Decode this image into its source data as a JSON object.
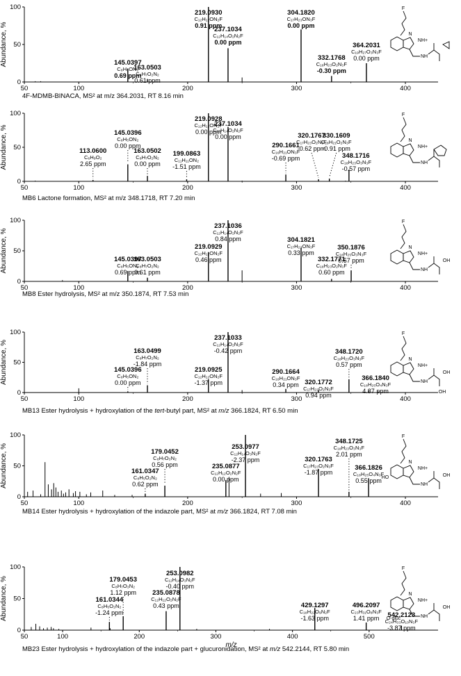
{
  "common": {
    "y_label": "Abundance, %",
    "x_label": "m/z",
    "y_ticks": [
      "0",
      "50",
      "100"
    ],
    "struct_fluoro": "F",
    "struct_nh_plus": "NH+",
    "struct_nh": "NH",
    "struct_n": "N",
    "struct_oh": "OH",
    "struct_ho": "HO",
    "struct_ogluc": "O-gluc"
  },
  "chart_data": [
    {
      "type": "bar",
      "caption": "4F-MDMB-BINACA, MS² at m/z 364.2031, RT 8.16 min",
      "xlim": [
        50,
        430
      ],
      "ylim": [
        0,
        100
      ],
      "x_ticks": [
        50,
        100,
        200,
        300,
        400
      ],
      "labeled_peaks": [
        {
          "mz": 145.0397,
          "y": 18,
          "mz_label": "145.0397",
          "formula": "C₈H₅ON₂",
          "ppm": "0.69 ppm",
          "ppm_bold": true
        },
        {
          "mz": 163.0503,
          "y": 4,
          "mz_label": "163.0503",
          "formula": "C₈H₇O₂N₂",
          "ppm": "0.61 ppm",
          "ppm_bold": false
        },
        {
          "mz": 219.093,
          "y": 100,
          "mz_label": "219.0930",
          "formula": "C₁₂H₁₂ON₂F",
          "ppm": "0.91 ppm",
          "ppm_bold": true
        },
        {
          "mz": 237.1034,
          "y": 45,
          "mz_label": "237.1034",
          "formula": "C₁₂H₁₄O₂N₂F",
          "ppm": "0.00 ppm",
          "ppm_bold": true
        },
        {
          "mz": 304.182,
          "y": 70,
          "mz_label": "304.1820",
          "formula": "C₁₇H₂₃ON₃F",
          "ppm": "0.00 ppm",
          "ppm_bold": true
        },
        {
          "mz": 332.1768,
          "y": 8,
          "mz_label": "332.1768",
          "formula": "C₁₈H₂₃O₂N₃F",
          "ppm": "-0.30 ppm",
          "ppm_bold": true
        },
        {
          "mz": 364.2031,
          "y": 25,
          "mz_label": "364.2031",
          "formula": "C₁₉H₂₇O₃N₃F",
          "ppm": "0.00 ppm",
          "ppm_bold": false
        }
      ],
      "minor_peaks": [
        {
          "mz": 60,
          "y": 1
        },
        {
          "mz": 65,
          "y": 1
        },
        {
          "mz": 250,
          "y": 6
        }
      ],
      "struct": "ester"
    },
    {
      "type": "bar",
      "caption": "MB6 Lactone formation, MS² at m/z 348.1718, RT 7.20 min",
      "xlim": [
        50,
        430
      ],
      "ylim": [
        0,
        100
      ],
      "x_ticks": [
        50,
        100,
        200,
        300,
        400
      ],
      "labeled_peaks": [
        {
          "mz": 113.06,
          "y": 2,
          "mz_label": "113.0600",
          "formula": "C₆H₉O₂",
          "ppm": "2.65 ppm",
          "ppm_bold": false
        },
        {
          "mz": 145.0396,
          "y": 25,
          "mz_label": "145.0396",
          "formula": "C₈H₅ON₂",
          "ppm": "0.00 ppm",
          "ppm_bold": false
        },
        {
          "mz": 163.0502,
          "y": 8,
          "mz_label": "163.0502",
          "formula": "C₈H₇O₂N₂",
          "ppm": "0.00 ppm",
          "ppm_bold": false
        },
        {
          "mz": 199.0863,
          "y": 3,
          "mz_label": "199.0863",
          "formula": "C₁₁H₁₁ON₂",
          "ppm": "-1.51 ppm",
          "ppm_bold": false
        },
        {
          "mz": 219.0928,
          "y": 100,
          "mz_label": "219.0928",
          "formula": "C₁₂H₁₂ON₂F",
          "ppm": "0.00 ppm",
          "ppm_bold": false
        },
        {
          "mz": 237.1034,
          "y": 80,
          "mz_label": "237.1034",
          "formula": "C₁₂H₁₄O₂N₂F",
          "ppm": "0.00 ppm",
          "ppm_bold": false
        },
        {
          "mz": 290.1661,
          "y": 10,
          "mz_label": "290.1661",
          "formula": "C₁₆H₂₁ON₃F",
          "ppm": "-0.69 ppm",
          "ppm_bold": false
        },
        {
          "mz": 320.1767,
          "y": 3,
          "mz_label": "320.1767",
          "formula": "C₁₇H₂₃O₂N₃F",
          "ppm": "-0.62 ppm",
          "ppm_bold": false
        },
        {
          "mz": 330.1609,
          "y": 4,
          "mz_label": "330.1609",
          "formula": "C₁₈H₂₁O₂N₃F",
          "ppm": "-0.91 ppm",
          "ppm_bold": false
        },
        {
          "mz": 348.1716,
          "y": 17,
          "mz_label": "348.1716",
          "formula": "C₁₈H₂₃O₃N₃F",
          "ppm": "-0.57 ppm",
          "ppm_bold": false
        }
      ],
      "minor_peaks": [
        {
          "mz": 60,
          "y": 1
        },
        {
          "mz": 250,
          "y": 1
        },
        {
          "mz": 345,
          "y": 1
        }
      ],
      "struct": "lactone"
    },
    {
      "type": "bar",
      "caption": "MB8 Ester hydrolysis, MS² at m/z 350.1874, RT 7.53 min",
      "xlim": [
        50,
        430
      ],
      "ylim": [
        0,
        100
      ],
      "x_ticks": [
        50,
        100,
        200,
        300,
        400
      ],
      "labeled_peaks": [
        {
          "mz": 145.0397,
          "y": 17,
          "mz_label": "145.0397",
          "formula": "C₈H₅ON₂",
          "ppm": "0.69 ppm",
          "ppm_bold": false
        },
        {
          "mz": 163.0503,
          "y": 6,
          "mz_label": "163.0503",
          "formula": "C₈H₇O₂N₂",
          "ppm": "0.61 ppm",
          "ppm_bold": false
        },
        {
          "mz": 219.0929,
          "y": 48,
          "mz_label": "219.0929",
          "formula": "C₁₂H₁₂ON₂F",
          "ppm": "0.46 ppm",
          "ppm_bold": false
        },
        {
          "mz": 237.1036,
          "y": 100,
          "mz_label": "237.1036",
          "formula": "C₁₂H₁₄O₂N₂F",
          "ppm": "0.84 ppm",
          "ppm_bold": false
        },
        {
          "mz": 304.1821,
          "y": 55,
          "mz_label": "304.1821",
          "formula": "C₁₇H₂₃ON₃F",
          "ppm": "0.33 ppm",
          "ppm_bold": false
        },
        {
          "mz": 332.1771,
          "y": 4,
          "mz_label": "332.1771",
          "formula": "C₁₈H₂₃O₂N₃F",
          "ppm": "0.60 ppm",
          "ppm_bold": false
        },
        {
          "mz": 350.1876,
          "y": 18,
          "mz_label": "350.1876",
          "formula": "C₁₈H₂₅O₃N₃F",
          "ppm": "0.57 ppm",
          "ppm_bold": false
        }
      ],
      "minor_peaks": [
        {
          "mz": 85,
          "y": 2
        },
        {
          "mz": 250,
          "y": 18
        }
      ],
      "struct": "acid"
    },
    {
      "type": "bar",
      "caption": "MB13 Ester hydrolysis + hydroxylation of the tert-butyl part, MS² at m/z 366.1824, RT 6.50 min",
      "caption_parts": [
        "MB13 Ester hydrolysis + hydroxylation of the ",
        "tert",
        "-butyl part, MS² at ",
        "m/z",
        " 366.1824, RT 6.50 min"
      ],
      "xlim": [
        50,
        430
      ],
      "ylim": [
        0,
        100
      ],
      "x_ticks": [
        50,
        100,
        200,
        300,
        400
      ],
      "labeled_peaks": [
        {
          "mz": 145.0396,
          "y": 2,
          "mz_label": "145.0396",
          "formula": "C₈H₅ON₂",
          "ppm": "0.00 ppm",
          "ppm_bold": false
        },
        {
          "mz": 163.0499,
          "y": 12,
          "mz_label": "163.0499",
          "formula": "C₈H₇O₂N₂",
          "ppm": "-1.84 ppm",
          "ppm_bold": false
        },
        {
          "mz": 219.0925,
          "y": 22,
          "mz_label": "219.0925",
          "formula": "C₁₂H₁₂ON₂F",
          "ppm": "-1.37 ppm",
          "ppm_bold": false
        },
        {
          "mz": 237.1033,
          "y": 100,
          "mz_label": "237.1033",
          "formula": "C₁₂H₁₄O₂N₂F",
          "ppm": "-0.42 ppm",
          "ppm_bold": false
        },
        {
          "mz": 290.1664,
          "y": 6,
          "mz_label": "290.1664",
          "formula": "C₁₆H₂₁ON₃F",
          "ppm": "0.34 ppm",
          "ppm_bold": false
        },
        {
          "mz": 320.1772,
          "y": 4,
          "mz_label": "320.1772",
          "formula": "C₁₇H₂₃O₂N₃F",
          "ppm": "0.94 ppm",
          "ppm_bold": false
        },
        {
          "mz": 348.172,
          "y": 22,
          "mz_label": "348.1720",
          "formula": "C₁₈H₂₃O₃N₃F",
          "ppm": "0.57 ppm",
          "ppm_bold": false
        },
        {
          "mz": 366.184,
          "y": 4,
          "mz_label": "366.1840",
          "formula": "C₁₈H₂₅O₄N₃F",
          "ppm": "4.37 ppm",
          "ppm_bold": false
        }
      ],
      "minor_peaks": [
        {
          "mz": 100,
          "y": 7
        },
        {
          "mz": 250,
          "y": 4
        },
        {
          "mz": 375,
          "y": 2
        }
      ],
      "struct": "acid-oh"
    },
    {
      "type": "bar",
      "caption": "MB14 Ester hydrolysis + hydroxylation of the indazole part, MS² at m/z 366.1824, RT 7.08 min",
      "caption_parts": [
        "MB14 Ester hydrolysis + hydroxylation of the indazole part, MS² at ",
        "m/z",
        " 366.1824, RT 7.08 min"
      ],
      "xlim": [
        50,
        430
      ],
      "ylim": [
        0,
        100
      ],
      "x_ticks": [
        50,
        100,
        200,
        300,
        400
      ],
      "labeled_peaks": [
        {
          "mz": 161.0347,
          "y": 5,
          "mz_label": "161.0347",
          "formula": "C₈H₅O₂N₂",
          "ppm": "0.62 ppm",
          "ppm_bold": false
        },
        {
          "mz": 179.0452,
          "y": 18,
          "mz_label": "179.0452",
          "formula": "C₈H₇O₃N₂",
          "ppm": "0.56 ppm",
          "ppm_bold": false
        },
        {
          "mz": 235.0877,
          "y": 27,
          "mz_label": "235.0877",
          "formula": "C₁₂H₁₂O₂N₂F",
          "ppm": "0.00 ppm",
          "ppm_bold": false
        },
        {
          "mz": 253.0977,
          "y": 100,
          "mz_label": "253.0977",
          "formula": "C₁₂H₁₄O₃N₂F",
          "ppm": "-2.37 ppm",
          "ppm_bold": false
        },
        {
          "mz": 320.1763,
          "y": 45,
          "mz_label": "320.1763",
          "formula": "C₁₇H₂₃O₂N₃F",
          "ppm": "-1.87 ppm",
          "ppm_bold": false
        },
        {
          "mz": 348.1725,
          "y": 8,
          "mz_label": "348.1725",
          "formula": "C₁₈H₂₃O₃N₃F",
          "ppm": "2.01 ppm",
          "ppm_bold": false
        },
        {
          "mz": 366.1826,
          "y": 30,
          "mz_label": "366.1826",
          "formula": "C₁₈H₂₅O₄N₃F",
          "ppm": "0.55 ppm",
          "ppm_bold": false
        }
      ],
      "minor_peaks": [
        {
          "mz": 53,
          "y": 8
        },
        {
          "mz": 58,
          "y": 10
        },
        {
          "mz": 65,
          "y": 4
        },
        {
          "mz": 69,
          "y": 56
        },
        {
          "mz": 72,
          "y": 20
        },
        {
          "mz": 75,
          "y": 12
        },
        {
          "mz": 77,
          "y": 22
        },
        {
          "mz": 79,
          "y": 15
        },
        {
          "mz": 81,
          "y": 8
        },
        {
          "mz": 84,
          "y": 10
        },
        {
          "mz": 86,
          "y": 5
        },
        {
          "mz": 88,
          "y": 7
        },
        {
          "mz": 91,
          "y": 12
        },
        {
          "mz": 95,
          "y": 6
        },
        {
          "mz": 97,
          "y": 9
        },
        {
          "mz": 101,
          "y": 8
        },
        {
          "mz": 107,
          "y": 4
        },
        {
          "mz": 111,
          "y": 7
        },
        {
          "mz": 122,
          "y": 10
        },
        {
          "mz": 133,
          "y": 3
        },
        {
          "mz": 149,
          "y": 3
        },
        {
          "mz": 238,
          "y": 32
        },
        {
          "mz": 267,
          "y": 5
        },
        {
          "mz": 286,
          "y": 6
        }
      ],
      "struct": "acid-indazole-oh"
    },
    {
      "type": "bar",
      "caption": "MB23 Ester hydrolysis + hydroxylation of the indazole part + glucuronidation, MS² at m/z 542.2144, RT 5.80 min",
      "caption_parts": [
        "MB23 Ester hydrolysis + hydroxylation of the indazole part + glucuronidation, MS² at ",
        "m/z",
        " 542.2144, RT 5.80 min"
      ],
      "xlim": [
        50,
        590
      ],
      "ylim": [
        0,
        100
      ],
      "x_ticks": [
        50,
        100,
        200,
        300,
        400,
        500
      ],
      "x_title": "m/z",
      "labeled_peaks": [
        {
          "mz": 161.0344,
          "y": 13,
          "mz_label": "161.0344",
          "formula": "C₈H₅O₂N₂",
          "ppm": "-1.24 ppm",
          "ppm_bold": false
        },
        {
          "mz": 179.0453,
          "y": 22,
          "mz_label": "179.0453",
          "formula": "C₈H₇O₃N₂",
          "ppm": "1.12 ppm",
          "ppm_bold": false
        },
        {
          "mz": 235.0878,
          "y": 30,
          "mz_label": "235.0878",
          "formula": "C₁₂H₁₂O₂N₂F",
          "ppm": "0.43 ppm",
          "ppm_bold": false
        },
        {
          "mz": 253.0982,
          "y": 100,
          "mz_label": "253.0982",
          "formula": "C₁₂H₁₄O₃N₂F",
          "ppm": "-0.40 ppm",
          "ppm_bold": false
        },
        {
          "mz": 429.1297,
          "y": 35,
          "mz_label": "429.1297",
          "formula": "C₁₈H₂₂O₉N₂F",
          "ppm": "-1.63 ppm",
          "ppm_bold": false
        },
        {
          "mz": 496.2097,
          "y": 12,
          "mz_label": "496.2097",
          "formula": "C₂₃H₃₁O₈N₃F",
          "ppm": "1.41 ppm",
          "ppm_bold": false
        },
        {
          "mz": 542.2123,
          "y": 7,
          "mz_label": "542.2123",
          "formula": "C₂₄H₃₃O₁₀N₃F",
          "ppm": "-3.87 ppm",
          "ppm_bold": false
        }
      ],
      "minor_peaks": [
        {
          "mz": 59,
          "y": 5
        },
        {
          "mz": 65,
          "y": 10
        },
        {
          "mz": 70,
          "y": 6
        },
        {
          "mz": 75,
          "y": 3
        },
        {
          "mz": 80,
          "y": 4
        },
        {
          "mz": 85,
          "y": 5
        },
        {
          "mz": 88,
          "y": 3
        },
        {
          "mz": 95,
          "y": 2
        },
        {
          "mz": 137,
          "y": 4
        },
        {
          "mz": 162,
          "y": 3
        },
        {
          "mz": 275,
          "y": 2
        },
        {
          "mz": 370,
          "y": 2
        }
      ],
      "struct": "acid-gluc"
    }
  ]
}
